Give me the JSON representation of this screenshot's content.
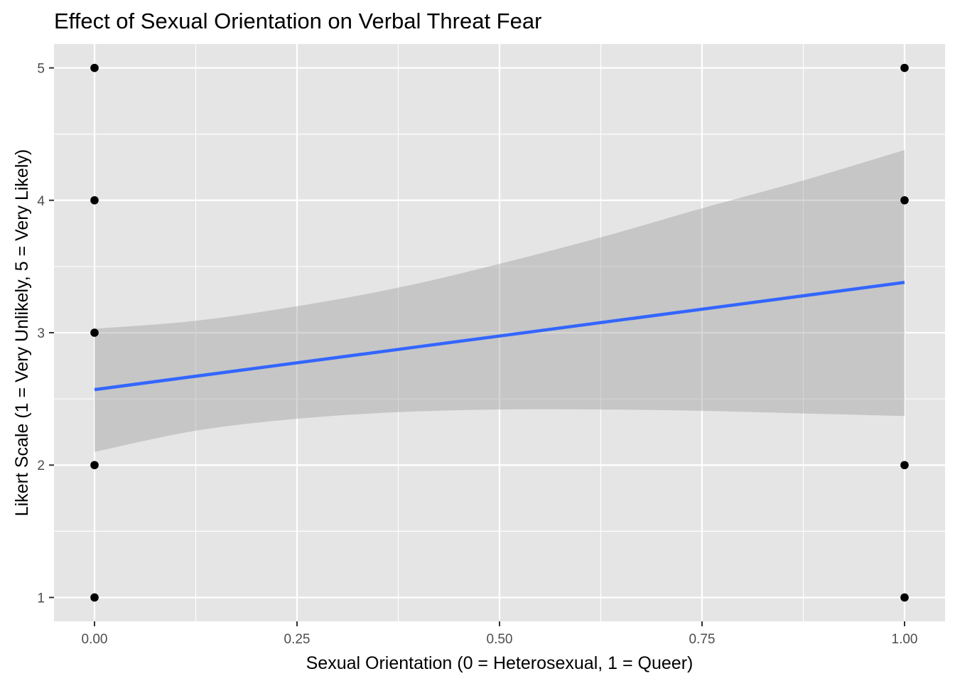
{
  "chart_data": {
    "type": "scatter",
    "title": "Effect of Sexual Orientation on Verbal Threat Fear",
    "xlabel": "Sexual Orientation (0 = Heterosexual, 1 = Queer)",
    "ylabel": "Likert Scale (1 = Very Unlikely, 5 = Very Likely)",
    "xlim": [
      -0.05,
      1.05
    ],
    "ylim": [
      0.82,
      5.18
    ],
    "x_ticks": [
      0,
      0.25,
      0.5,
      0.75,
      1
    ],
    "x_tick_labels": [
      "0.00",
      "0.25",
      "0.50",
      "0.75",
      "1.00"
    ],
    "y_ticks": [
      1,
      2,
      3,
      4,
      5
    ],
    "y_tick_labels": [
      "1",
      "2",
      "3",
      "4",
      "5"
    ],
    "grid": true,
    "points": [
      {
        "x": 0,
        "y": 1
      },
      {
        "x": 0,
        "y": 2
      },
      {
        "x": 0,
        "y": 3
      },
      {
        "x": 0,
        "y": 4
      },
      {
        "x": 0,
        "y": 5
      },
      {
        "x": 1,
        "y": 1
      },
      {
        "x": 1,
        "y": 2
      },
      {
        "x": 1,
        "y": 4
      },
      {
        "x": 1,
        "y": 5
      }
    ],
    "fit_line": {
      "x": [
        0,
        1
      ],
      "y": [
        2.57,
        3.38
      ]
    },
    "confidence_band": {
      "x": [
        0,
        0.125,
        0.25,
        0.375,
        0.5,
        0.625,
        0.75,
        0.875,
        1
      ],
      "lower": [
        2.1,
        2.26,
        2.35,
        2.4,
        2.42,
        2.42,
        2.41,
        2.39,
        2.37
      ],
      "upper": [
        3.03,
        3.09,
        3.2,
        3.34,
        3.52,
        3.72,
        3.94,
        4.15,
        4.38
      ]
    },
    "colors": {
      "panel": "#e5e5e5",
      "grid": "#ffffff",
      "points": "#000000",
      "line": "#3366ff",
      "band": "#999999"
    }
  }
}
